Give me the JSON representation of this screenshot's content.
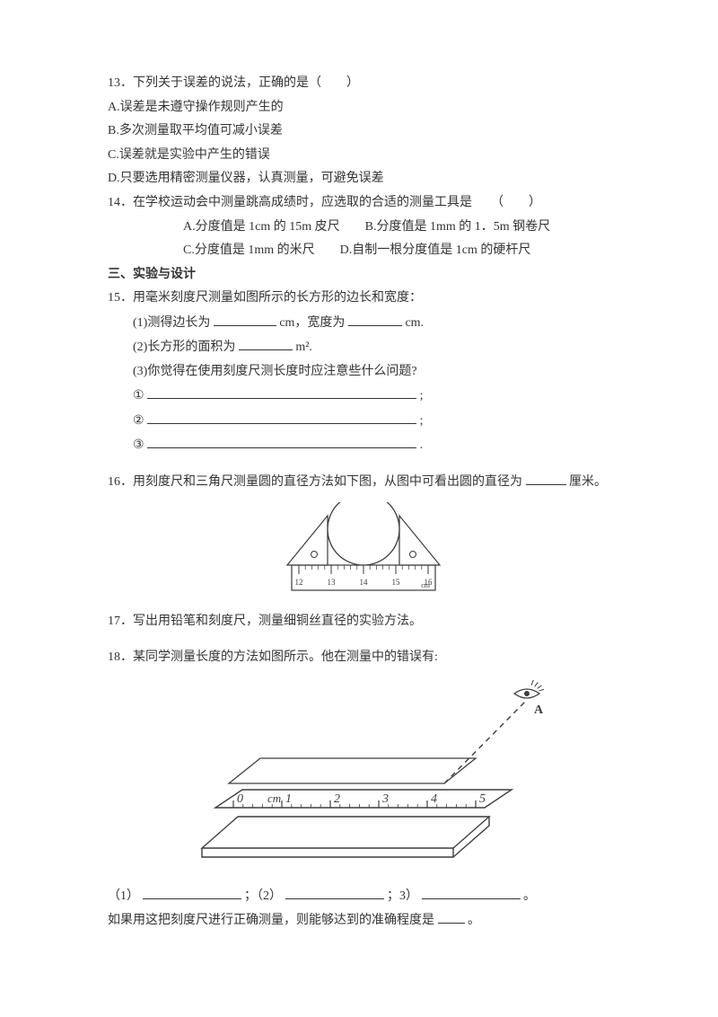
{
  "q13": {
    "stem": "13．下列关于误差的说法，正确的是（　　）",
    "A": "A.误差是未遵守操作规则产生的",
    "B": "B.多次测量取平均值可减小误差",
    "C": "C.误差就是实验中产生的错误",
    "D": "D.只要选用精密测量仪器，认真测量，可避免误差"
  },
  "q14": {
    "stem": "14．在学校运动会中测量跳高成绩时，应选取的合适的测量工具是　　（　　）",
    "rowAB": "A.分度值是 1cm 的 15m 皮尺　　B.分度值是 1mm 的 1．5m 钢卷尺",
    "rowCD": "C.分度值是 1mm 的米尺　　D.自制一根分度值是 1cm 的硬杆尺"
  },
  "section3": "三、实验与设计",
  "q15": {
    "stem": "15．用毫米刻度尺测量如图所示的长方形的边长和宽度：",
    "p1a": "(1)测得边长为",
    "p1b": "cm，宽度为",
    "p1c": "cm.",
    "p2a": "(2)长方形的面积为",
    "p2b": "m².",
    "p3": "(3)你觉得在使用刻度尺测长度时应注意些什么问题?",
    "l1": "①",
    "l2": "②",
    "l3": "③",
    "semi": ";",
    "period": "."
  },
  "q16": {
    "a": "16．用刻度尺和三角尺测量圆的直径方法如下图，从图中可看出圆的直径为",
    "b": "厘米。"
  },
  "fig16": {
    "ticks": [
      "12",
      "13",
      "14",
      "15",
      "16"
    ],
    "unit": "cm",
    "stroke": "#3a3a3a",
    "fill": "#ffffff"
  },
  "q17": "17．写出用铅笔和刻度尺，测量细铜丝直径的实验方法。",
  "q18": {
    "stem": "18．某同学测量长度的方法如图所示。他在测量中的错误有:",
    "row_a": "（1）",
    "row_b": "；（2）",
    "row_c": "；3）",
    "row_d": "。",
    "line2a": "如果用这把刻度尺进行正确测量，则能够达到的准确程度是",
    "line2b": "。"
  },
  "fig18": {
    "nums": [
      "0",
      "1",
      "2",
      "3",
      "4",
      "5"
    ],
    "cm": "cm",
    "eye": "A",
    "stroke": "#3d3d3d"
  }
}
